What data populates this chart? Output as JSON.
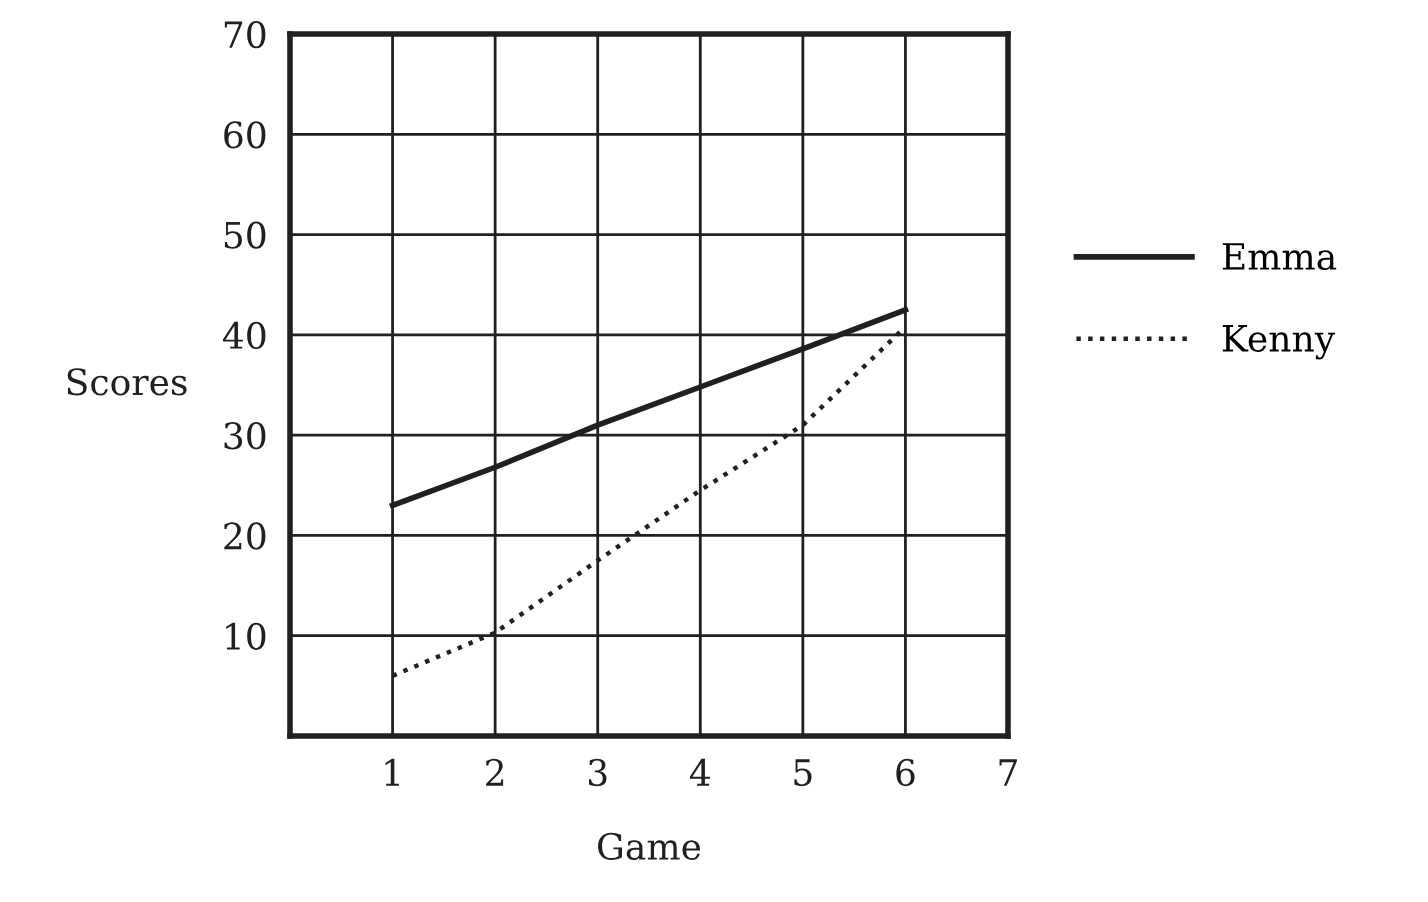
{
  "chart_data": {
    "type": "line",
    "xlabel": "Game",
    "ylabel": "Scores",
    "x": [
      1,
      2,
      3,
      4,
      5,
      6
    ],
    "series": [
      {
        "name": "Emma",
        "color": "#231f20",
        "line_style": "solid",
        "values": [
          23,
          26.8,
          31,
          34.8,
          38.6,
          42.5
        ]
      },
      {
        "name": "Kenny",
        "color": "#231f20",
        "line_style": "dotted",
        "values": [
          6,
          10.3,
          17.5,
          24.5,
          31,
          40.8
        ]
      }
    ],
    "xlim": [
      0,
      7
    ],
    "ylim": [
      0,
      70
    ],
    "xticks": [
      1,
      2,
      3,
      4,
      5,
      6,
      7
    ],
    "yticks": [
      10,
      20,
      30,
      40,
      50,
      60,
      70
    ],
    "grid": true,
    "legend": "right",
    "marker": "none"
  }
}
